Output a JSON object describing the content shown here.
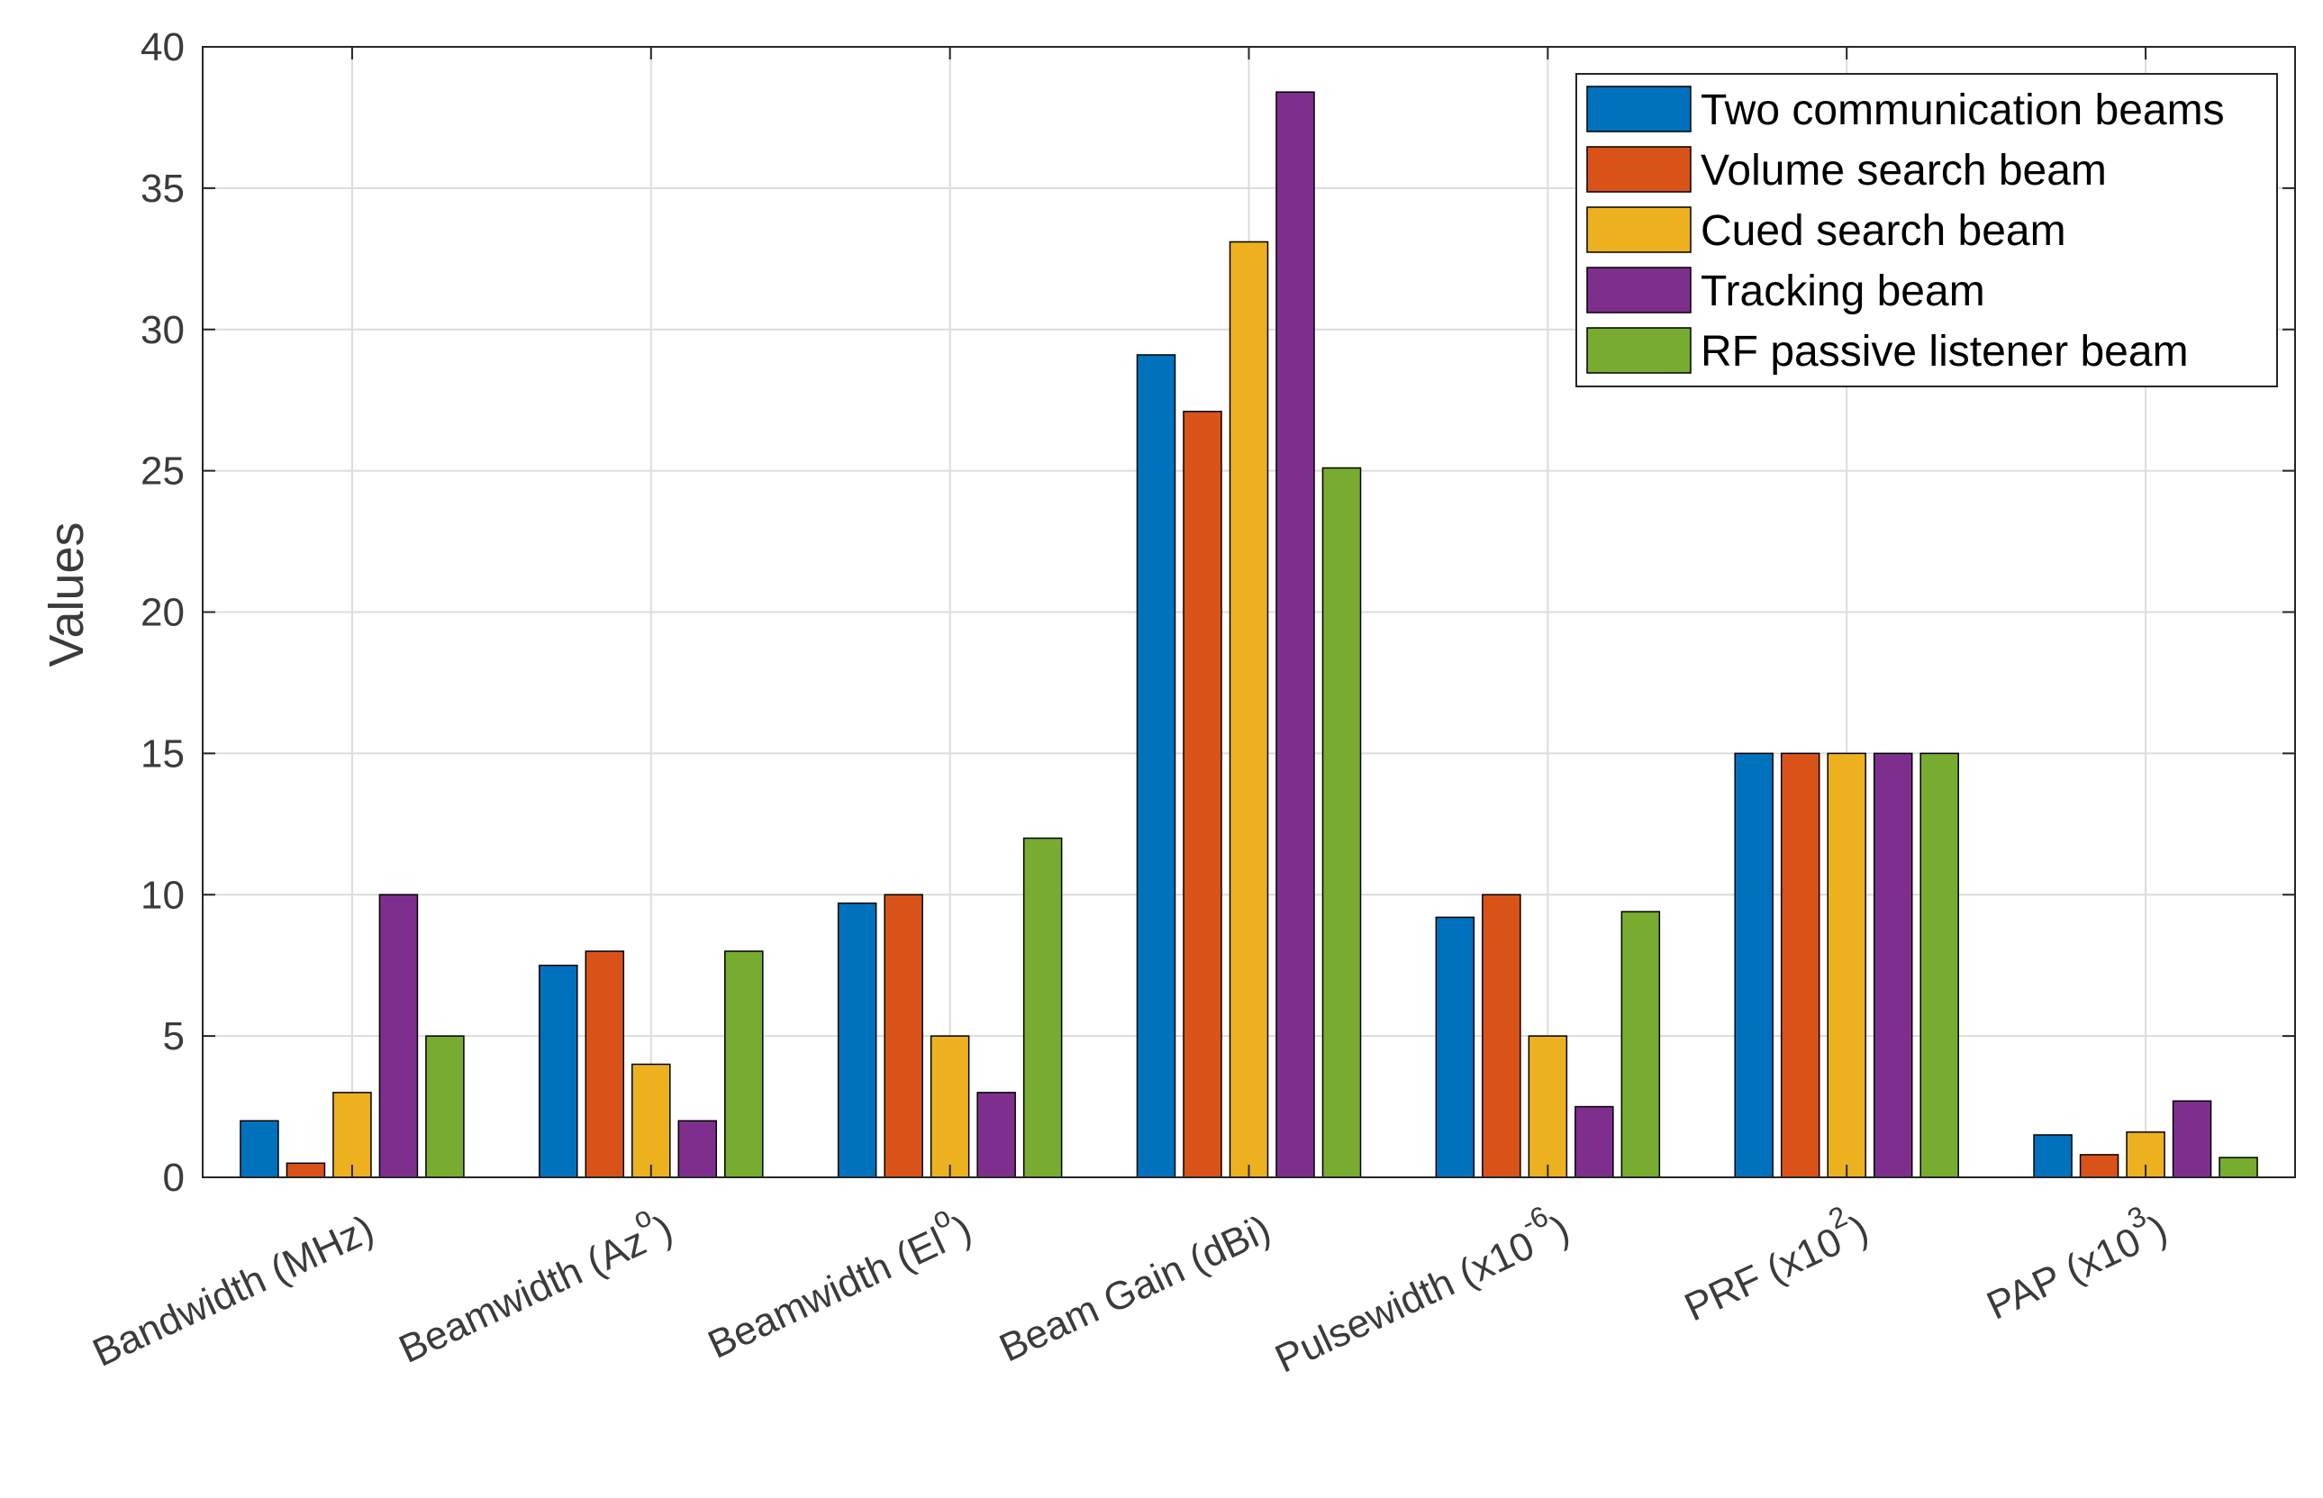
{
  "chart_data": {
    "type": "bar",
    "title": "",
    "xlabel": "",
    "ylabel": "Values",
    "ylim": [
      0,
      40
    ],
    "yticks": [
      0,
      5,
      10,
      15,
      20,
      25,
      30,
      35,
      40
    ],
    "grid": true,
    "legend_position": "top-right",
    "categories": [
      {
        "base": "Bandwidth (MHz)",
        "sup": "",
        "suffix": ""
      },
      {
        "base": "Beamwidth (Az",
        "sup": "o",
        "suffix": ")"
      },
      {
        "base": "Beamwidth (El",
        "sup": "o",
        "suffix": ")"
      },
      {
        "base": "Beam Gain (dBi)",
        "sup": "",
        "suffix": ""
      },
      {
        "base": "Pulsewidth (x10",
        "sup": "-6",
        "suffix": ")"
      },
      {
        "base": "PRF (x10",
        "sup": "2",
        "suffix": ")"
      },
      {
        "base": "PAP (x10",
        "sup": "3",
        "suffix": ")"
      }
    ],
    "series": [
      {
        "name": "Two communication beams",
        "color": "#0072BD",
        "values": [
          2,
          7.5,
          9.7,
          29.1,
          9.2,
          15,
          1.5
        ]
      },
      {
        "name": "Volume search beam",
        "color": "#D95319",
        "values": [
          0.5,
          8,
          10,
          27.1,
          10,
          15,
          0.8
        ]
      },
      {
        "name": "Cued search beam",
        "color": "#EDB120",
        "values": [
          3,
          4,
          5,
          33.1,
          5,
          15,
          1.6
        ]
      },
      {
        "name": "Tracking beam",
        "color": "#7E2F8E",
        "values": [
          10,
          2,
          3,
          38.4,
          2.5,
          15,
          2.7
        ]
      },
      {
        "name": "RF passive listener beam",
        "color": "#77AC30",
        "values": [
          5,
          8,
          12,
          25.1,
          9.4,
          15,
          0.7
        ]
      }
    ]
  }
}
